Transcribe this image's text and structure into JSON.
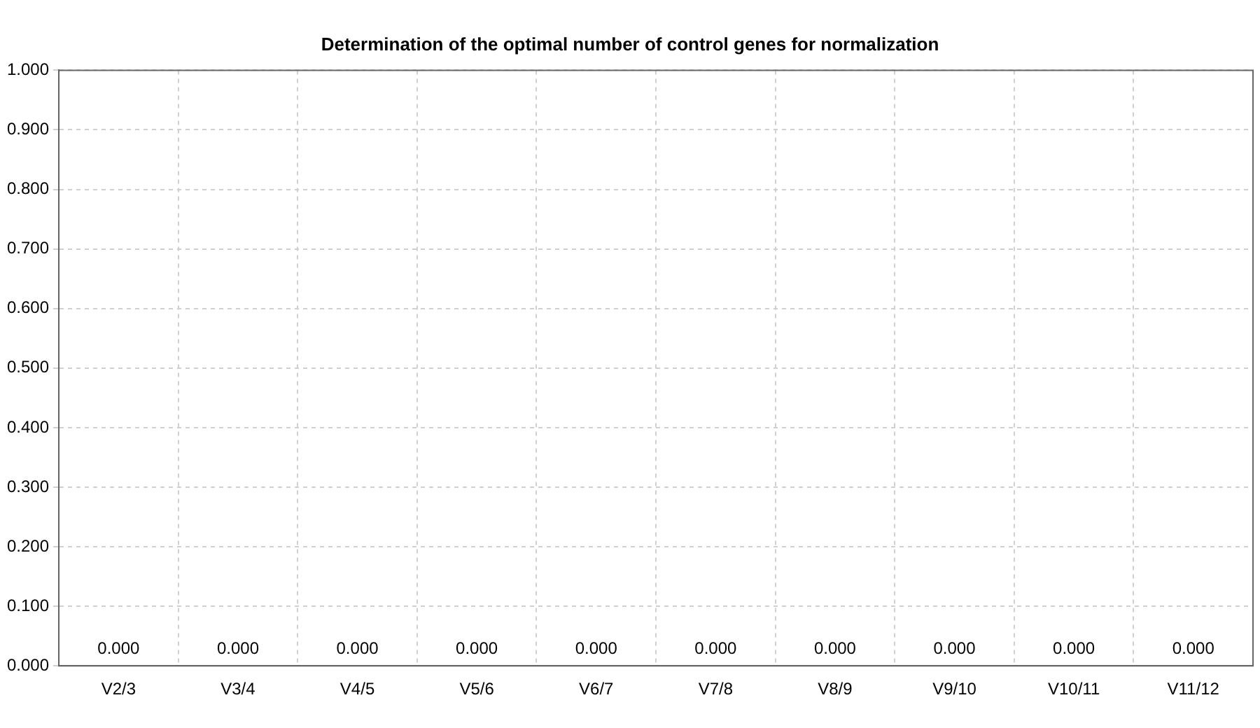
{
  "chart_data": {
    "type": "bar",
    "title": "Determination of the optimal number of control genes for normalization",
    "categories": [
      "V2/3",
      "V3/4",
      "V4/5",
      "V5/6",
      "V6/7",
      "V7/8",
      "V8/9",
      "V9/10",
      "V10/11",
      "V11/12"
    ],
    "values": [
      0,
      0,
      0,
      0,
      0,
      0,
      0,
      0,
      0,
      0
    ],
    "value_labels": [
      "0.000",
      "0.000",
      "0.000",
      "0.000",
      "0.000",
      "0.000",
      "0.000",
      "0.000",
      "0.000",
      "0.000"
    ],
    "ylim": [
      0,
      1
    ],
    "yticks": [
      {
        "value": 0,
        "label": "0.000"
      },
      {
        "value": 0.1,
        "label": "0.100"
      },
      {
        "value": 0.2,
        "label": "0.200"
      },
      {
        "value": 0.3,
        "label": "0.300"
      },
      {
        "value": 0.4,
        "label": "0.400"
      },
      {
        "value": 0.5,
        "label": "0.500"
      },
      {
        "value": 0.6,
        "label": "0.600"
      },
      {
        "value": 0.7,
        "label": "0.700"
      },
      {
        "value": 0.8,
        "label": "0.800"
      },
      {
        "value": 0.9,
        "label": "0.900"
      },
      {
        "value": 1,
        "label": "1.000"
      }
    ],
    "grid": true
  }
}
